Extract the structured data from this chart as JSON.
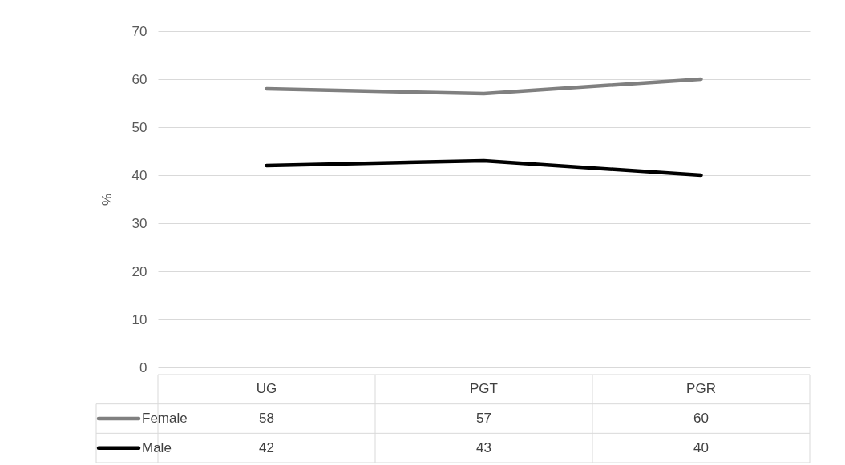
{
  "chart_data": {
    "type": "line",
    "ylabel": "%",
    "categories": [
      "UG",
      "PGT",
      "PGR"
    ],
    "series": [
      {
        "name": "Female",
        "color": "#808080",
        "values": [
          58,
          57,
          60
        ]
      },
      {
        "name": "Male",
        "color": "#000000",
        "values": [
          42,
          43,
          40
        ]
      }
    ],
    "ylim": [
      0,
      70
    ],
    "yticks": [
      0,
      10,
      20,
      30,
      40,
      50,
      60,
      70
    ],
    "grid": "y",
    "data_labels": true,
    "legend": "bottom",
    "line_style": "solid"
  }
}
